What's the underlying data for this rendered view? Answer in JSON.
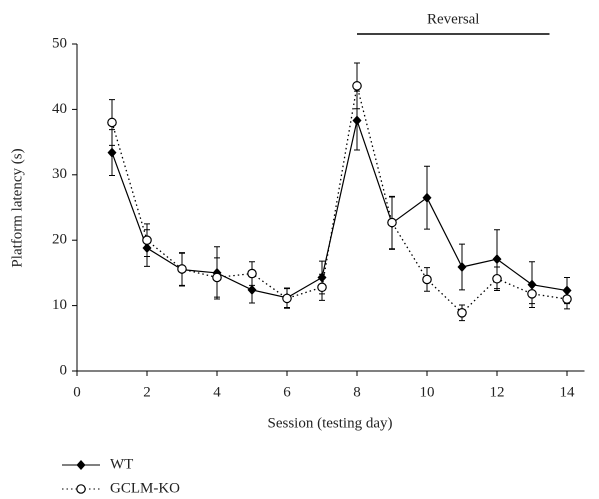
{
  "chart_data": {
    "type": "line",
    "x_label": "Session (testing day)",
    "y_label": "Platform latency (s)",
    "x": [
      1,
      2,
      3,
      4,
      5,
      6,
      7,
      8,
      9,
      10,
      11,
      12,
      13,
      14
    ],
    "series": [
      {
        "name": "WT",
        "color": "#000000",
        "marker": "diamond",
        "linestyle": "solid",
        "values": [
          33.4,
          18.8,
          15.5,
          15.0,
          12.4,
          11.2,
          14.3,
          38.3,
          22.6,
          26.5,
          15.9,
          17.1,
          13.2,
          12.3
        ],
        "errors": [
          3.5,
          2.8,
          2.5,
          4.0,
          2.0,
          1.5,
          2.5,
          4.5,
          4.0,
          4.8,
          3.5,
          4.5,
          3.5,
          2.0
        ]
      },
      {
        "name": "GCLM-KO",
        "color": "#000000",
        "marker": "open-circle",
        "linestyle": "dotted",
        "values": [
          38.0,
          20.0,
          15.6,
          14.3,
          14.9,
          11.1,
          12.8,
          43.6,
          22.7,
          14.0,
          8.9,
          14.1,
          11.8,
          11.0
        ],
        "errors": [
          3.5,
          2.5,
          2.5,
          3.0,
          1.8,
          1.5,
          2.0,
          3.5,
          4.0,
          1.8,
          1.2,
          1.8,
          1.5,
          1.5
        ]
      }
    ],
    "annotation": {
      "text": "Reversal",
      "x_range": [
        8,
        13.5
      ]
    },
    "xlim": [
      0,
      14.5
    ],
    "xticks": [
      0,
      2,
      4,
      6,
      8,
      10,
      12,
      14
    ],
    "ylim": [
      0,
      50
    ],
    "yticks": [
      0,
      10,
      20,
      30,
      40,
      50
    ]
  }
}
